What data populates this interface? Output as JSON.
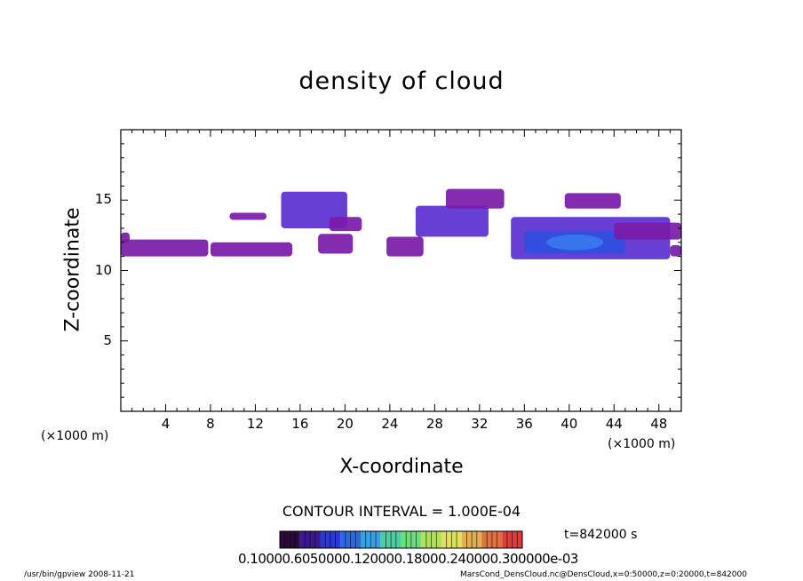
{
  "chart_data": {
    "type": "contour",
    "title": "density of cloud",
    "xlabel": "X-coordinate",
    "ylabel": "Z-coordinate",
    "x_unit_left": "(×1000 m)",
    "x_unit_right": "(×1000 m)",
    "xlim": [
      0,
      50
    ],
    "ylim": [
      0,
      20
    ],
    "xticks": [
      "4",
      "8",
      "12",
      "16",
      "20",
      "24",
      "28",
      "32",
      "36",
      "40",
      "44",
      "48"
    ],
    "xtick_values": [
      4,
      8,
      12,
      16,
      20,
      24,
      28,
      32,
      36,
      40,
      44,
      48
    ],
    "yticks": [
      "5",
      "10",
      "15"
    ],
    "ytick_values": [
      5,
      10,
      15
    ],
    "contour_interval_text": "CONTOUR INTERVAL = 1.000E-04",
    "time_text": "t=842000 s",
    "colorbar_labels_text": "0.10000.6050000.120000.18000.240000.300000e-03",
    "colors": {
      "low": "#7a1aa8",
      "mid": "#5a2fd0",
      "high": "#2f4fe0",
      "peak": "#3a7df0"
    },
    "cloud_regions": [
      {
        "x": [
          0.0,
          7.8
        ],
        "z": [
          11.0,
          12.2
        ],
        "level": 1
      },
      {
        "x": [
          0.0,
          0.8
        ],
        "z": [
          12.0,
          12.7
        ],
        "level": 1
      },
      {
        "x": [
          8.0,
          15.3
        ],
        "z": [
          11.0,
          12.0
        ],
        "level": 1
      },
      {
        "x": [
          9.7,
          13.0
        ],
        "z": [
          13.6,
          14.1
        ],
        "level": 1
      },
      {
        "x": [
          14.3,
          20.2
        ],
        "z": [
          13.0,
          15.6
        ],
        "level": 2
      },
      {
        "x": [
          18.6,
          21.5
        ],
        "z": [
          12.8,
          13.8
        ],
        "level": 1
      },
      {
        "x": [
          17.6,
          20.7
        ],
        "z": [
          11.2,
          12.6
        ],
        "level": 1
      },
      {
        "x": [
          23.7,
          27.0
        ],
        "z": [
          11.0,
          12.4
        ],
        "level": 1
      },
      {
        "x": [
          26.3,
          32.8
        ],
        "z": [
          12.4,
          14.6
        ],
        "level": 2
      },
      {
        "x": [
          29.0,
          34.2
        ],
        "z": [
          14.4,
          15.8
        ],
        "level": 1
      },
      {
        "x": [
          34.8,
          49.0
        ],
        "z": [
          10.8,
          13.8
        ],
        "level": 3
      },
      {
        "x": [
          36.0,
          45.0
        ],
        "z": [
          11.2,
          12.8
        ],
        "level": 4
      },
      {
        "x": [
          39.6,
          44.6
        ],
        "z": [
          14.4,
          15.5
        ],
        "level": 1
      },
      {
        "x": [
          44.0,
          50.0
        ],
        "z": [
          12.2,
          13.4
        ],
        "level": 1
      },
      {
        "x": [
          49.0,
          50.0
        ],
        "z": [
          11.0,
          11.8
        ],
        "level": 1
      }
    ]
  },
  "footer": {
    "left": "/usr/bin/gpview   2008-11-21",
    "right": "MarsCond_DensCloud.nc@DensCloud,x=0:50000,z=0:20000,t=842000"
  }
}
